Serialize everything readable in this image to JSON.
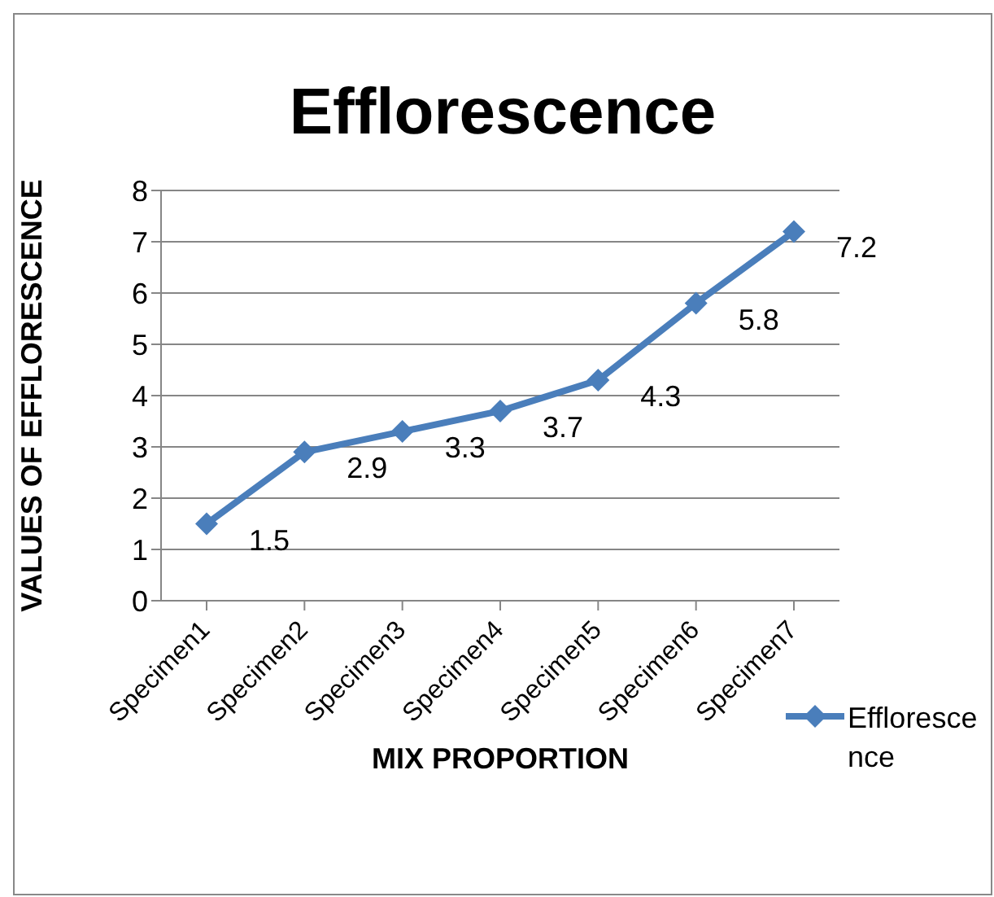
{
  "chart_data": {
    "type": "line",
    "title": "Efflorescence",
    "xlabel": "MIX PROPORTION",
    "ylabel": "VALUES OF EFFLORESCENCE",
    "categories": [
      "Specimen1",
      "Specimen2",
      "Specimen3",
      "Specimen4",
      "Specimen5",
      "Specimen6",
      "Specimen7"
    ],
    "series": [
      {
        "name": "Efflorescence",
        "color": "#4a7ebb",
        "values": [
          1.5,
          2.9,
          3.3,
          3.7,
          4.3,
          5.8,
          7.2
        ]
      }
    ],
    "ylim": [
      0,
      8
    ],
    "yticks": [
      0,
      1,
      2,
      3,
      4,
      5,
      6,
      7,
      8
    ],
    "grid": "y",
    "legend": "right",
    "marker": "diamond",
    "data_labels": true
  }
}
